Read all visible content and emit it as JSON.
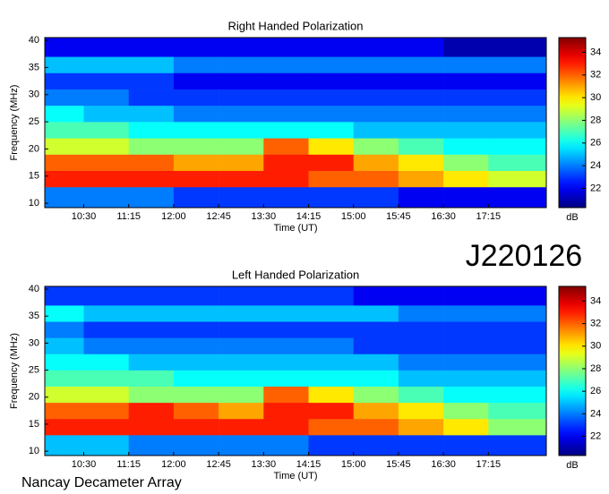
{
  "event_id": "J220126",
  "credit": "Nancay Decameter Array",
  "chart_data": [
    {
      "type": "heatmap",
      "title": "Right Handed Polarization",
      "xlabel": "Time (UT)",
      "ylabel": "Frequency (MHz)",
      "xlim": [
        591,
        1093
      ],
      "ylim": [
        9.2,
        40.5
      ],
      "xticks": [
        {
          "value": 630,
          "label": "10:30"
        },
        {
          "value": 675,
          "label": "11:15"
        },
        {
          "value": 720,
          "label": "12:00"
        },
        {
          "value": 765,
          "label": "12:45"
        },
        {
          "value": 810,
          "label": "13:30"
        },
        {
          "value": 855,
          "label": "14:15"
        },
        {
          "value": 900,
          "label": "15:00"
        },
        {
          "value": 945,
          "label": "15:45"
        },
        {
          "value": 990,
          "label": "16:30"
        },
        {
          "value": 1035,
          "label": "17:15"
        }
      ],
      "yticks": [
        10,
        15,
        20,
        25,
        30,
        35,
        40
      ],
      "x_edges": [
        591,
        630,
        675,
        720,
        765,
        810,
        855,
        900,
        945,
        990,
        1035,
        1093
      ],
      "y_edges": [
        9.2,
        13,
        16,
        19,
        22,
        25,
        28,
        31,
        34,
        37,
        40.5
      ],
      "z": [
        [
          24,
          24,
          24,
          23,
          23,
          23,
          23,
          23,
          22,
          22,
          22
        ],
        [
          33,
          33,
          33,
          33,
          33,
          33,
          32,
          32,
          31,
          30,
          29
        ],
        [
          32,
          32,
          32,
          31,
          31,
          33,
          33,
          31,
          30,
          28,
          27
        ],
        [
          29,
          29,
          28,
          28,
          28,
          32,
          30,
          28,
          27,
          26,
          26
        ],
        [
          27,
          27,
          26,
          26,
          26,
          26,
          26,
          25,
          25,
          25,
          25
        ],
        [
          26,
          25,
          25,
          24,
          24,
          24,
          24,
          24,
          24,
          24,
          24
        ],
        [
          24,
          24,
          23,
          23,
          23,
          23,
          23,
          23,
          23,
          23,
          23
        ],
        [
          23,
          23,
          23,
          22,
          22,
          22,
          22,
          22,
          22,
          22,
          22
        ],
        [
          25,
          25,
          25,
          24,
          24,
          24,
          24,
          24,
          24,
          24,
          24
        ],
        [
          22,
          22,
          22,
          22,
          22,
          22,
          22,
          22,
          22,
          21,
          21
        ]
      ],
      "colorbar": {
        "label": "dB",
        "colormap": "jet",
        "clim": [
          20.3,
          35.3
        ],
        "ticks": [
          22,
          24,
          26,
          28,
          30,
          32,
          34
        ]
      }
    },
    {
      "type": "heatmap",
      "title": "Left Handed Polarization",
      "xlabel": "Time (UT)",
      "ylabel": "Frequency (MHz)",
      "xlim": [
        591,
        1093
      ],
      "ylim": [
        9.2,
        40.5
      ],
      "xticks": [
        {
          "value": 630,
          "label": "10:30"
        },
        {
          "value": 675,
          "label": "11:15"
        },
        {
          "value": 720,
          "label": "12:00"
        },
        {
          "value": 765,
          "label": "12:45"
        },
        {
          "value": 810,
          "label": "13:30"
        },
        {
          "value": 855,
          "label": "14:15"
        },
        {
          "value": 900,
          "label": "15:00"
        },
        {
          "value": 945,
          "label": "15:45"
        },
        {
          "value": 990,
          "label": "16:30"
        },
        {
          "value": 1035,
          "label": "17:15"
        }
      ],
      "yticks": [
        10,
        15,
        20,
        25,
        30,
        35,
        40
      ],
      "x_edges": [
        591,
        630,
        675,
        720,
        765,
        810,
        855,
        900,
        945,
        990,
        1035,
        1093
      ],
      "y_edges": [
        9.2,
        13,
        16,
        19,
        22,
        25,
        28,
        31,
        34,
        37,
        40.5
      ],
      "z": [
        [
          25,
          25,
          24,
          24,
          24,
          24,
          23,
          23,
          23,
          23,
          23
        ],
        [
          33,
          33,
          33,
          33,
          33,
          33,
          32,
          32,
          31,
          30,
          28
        ],
        [
          32,
          32,
          33,
          32,
          31,
          33,
          33,
          31,
          30,
          28,
          27
        ],
        [
          29,
          29,
          28,
          28,
          28,
          32,
          30,
          28,
          27,
          26,
          26
        ],
        [
          27,
          27,
          27,
          26,
          26,
          26,
          26,
          26,
          25,
          25,
          25
        ],
        [
          26,
          26,
          25,
          25,
          25,
          25,
          25,
          25,
          24,
          24,
          24
        ],
        [
          25,
          24,
          24,
          24,
          24,
          24,
          24,
          23,
          23,
          23,
          23
        ],
        [
          24,
          23,
          23,
          23,
          23,
          23,
          23,
          23,
          23,
          23,
          23
        ],
        [
          26,
          25,
          25,
          25,
          25,
          25,
          25,
          25,
          24,
          24,
          24
        ],
        [
          23,
          23,
          23,
          23,
          23,
          23,
          23,
          22,
          22,
          22,
          22
        ]
      ],
      "colorbar": {
        "label": "dB",
        "colormap": "jet",
        "clim": [
          20.3,
          35.3
        ],
        "ticks": [
          22,
          24,
          26,
          28,
          30,
          32,
          34
        ]
      }
    }
  ]
}
